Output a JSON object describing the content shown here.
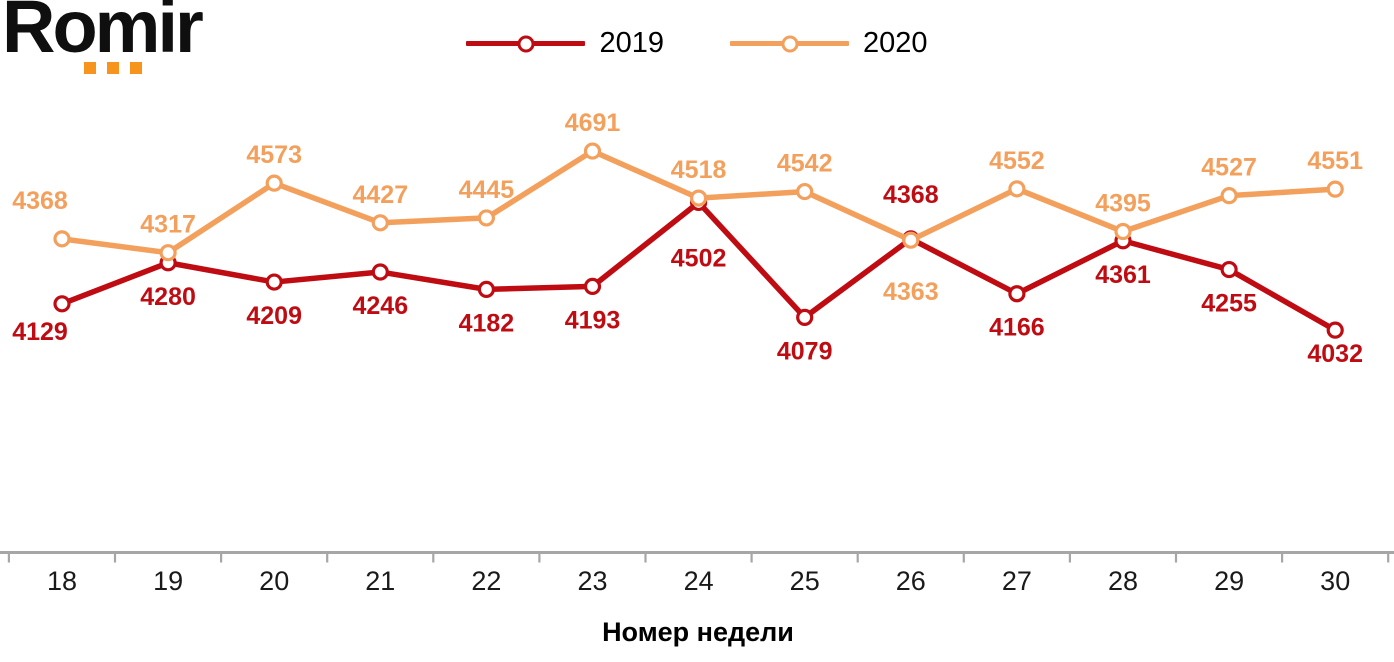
{
  "logo": {
    "text": "Romir",
    "text_color": "#0f0f0f",
    "dots_color": "#F7941E"
  },
  "legend": {
    "items": [
      {
        "label": "2019",
        "color": "#BF0B12"
      },
      {
        "label": "2020",
        "color": "#F3A05D"
      }
    ]
  },
  "chart_data": {
    "type": "line",
    "x": [
      18,
      19,
      20,
      21,
      22,
      23,
      24,
      25,
      26,
      27,
      28,
      29,
      30
    ],
    "xlabel": "Номер недели",
    "series": [
      {
        "name": "2019",
        "color": "#BF0B12",
        "marker": "open-circle",
        "values": [
          4129,
          4280,
          4209,
          4246,
          4182,
          4193,
          4502,
          4079,
          4368,
          4166,
          4361,
          4255,
          4032
        ]
      },
      {
        "name": "2020",
        "color": "#F3A05D",
        "marker": "open-circle",
        "values": [
          4368,
          4317,
          4573,
          4427,
          4445,
          4691,
          4518,
          4542,
          4363,
          4552,
          4395,
          4527,
          4551
        ]
      }
    ],
    "ylim": [
      4000,
      4720
    ],
    "grid": false,
    "y_axis_visible": false,
    "data_labels": true,
    "legend_position": "top-center",
    "axis_color": "#A6A6A6",
    "tick_label_color": "#1a1a1a",
    "xlabel_color": "#000000"
  }
}
